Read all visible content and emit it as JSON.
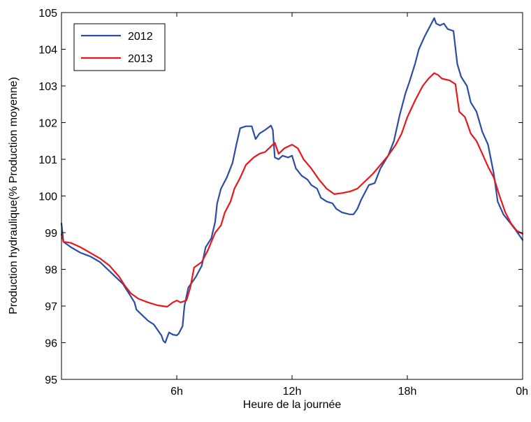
{
  "chart_data": {
    "type": "line",
    "xlabel": "Heure de la journée",
    "ylabel": "Production hydraulique(% Production moyenne)",
    "xlim": [
      0,
      24
    ],
    "ylim": [
      95,
      105
    ],
    "xticks": [
      {
        "value": 6,
        "label": "6h"
      },
      {
        "value": 12,
        "label": "12h"
      },
      {
        "value": 18,
        "label": "18h"
      },
      {
        "value": 24,
        "label": "0h"
      }
    ],
    "yticks": [
      {
        "value": 95,
        "label": "95"
      },
      {
        "value": 96,
        "label": "96"
      },
      {
        "value": 97,
        "label": "97"
      },
      {
        "value": 98,
        "label": "98"
      },
      {
        "value": 99,
        "label": "99"
      },
      {
        "value": 100,
        "label": "100"
      },
      {
        "value": 101,
        "label": "101"
      },
      {
        "value": 102,
        "label": "102"
      },
      {
        "value": 103,
        "label": "103"
      },
      {
        "value": 104,
        "label": "104"
      },
      {
        "value": 105,
        "label": "105"
      }
    ],
    "grid": false,
    "legend": {
      "position": "top-left",
      "boxed": true
    },
    "series": [
      {
        "name": "2012",
        "color": "#2c4ca6",
        "points": [
          [
            0.0,
            99.25
          ],
          [
            0.1,
            98.75
          ],
          [
            0.5,
            98.6
          ],
          [
            1.0,
            98.45
          ],
          [
            1.5,
            98.35
          ],
          [
            2.0,
            98.2
          ],
          [
            2.5,
            97.95
          ],
          [
            3.0,
            97.7
          ],
          [
            3.2,
            97.6
          ],
          [
            3.5,
            97.35
          ],
          [
            3.8,
            97.1
          ],
          [
            3.9,
            96.9
          ],
          [
            4.2,
            96.75
          ],
          [
            4.5,
            96.6
          ],
          [
            4.8,
            96.5
          ],
          [
            5.0,
            96.35
          ],
          [
            5.2,
            96.2
          ],
          [
            5.3,
            96.05
          ],
          [
            5.4,
            96.0
          ],
          [
            5.5,
            96.15
          ],
          [
            5.6,
            96.28
          ],
          [
            5.8,
            96.22
          ],
          [
            6.0,
            96.2
          ],
          [
            6.1,
            96.25
          ],
          [
            6.3,
            96.45
          ],
          [
            6.4,
            97.0
          ],
          [
            6.6,
            97.5
          ],
          [
            7.0,
            97.8
          ],
          [
            7.3,
            98.1
          ],
          [
            7.5,
            98.6
          ],
          [
            7.8,
            98.85
          ],
          [
            8.0,
            99.3
          ],
          [
            8.1,
            99.8
          ],
          [
            8.3,
            100.2
          ],
          [
            8.6,
            100.5
          ],
          [
            8.9,
            100.9
          ],
          [
            9.1,
            101.4
          ],
          [
            9.3,
            101.85
          ],
          [
            9.6,
            101.9
          ],
          [
            9.9,
            101.9
          ],
          [
            10.1,
            101.55
          ],
          [
            10.3,
            101.7
          ],
          [
            10.6,
            101.8
          ],
          [
            10.9,
            101.92
          ],
          [
            11.0,
            101.8
          ],
          [
            11.1,
            101.05
          ],
          [
            11.3,
            101.0
          ],
          [
            11.5,
            101.1
          ],
          [
            11.8,
            101.05
          ],
          [
            12.0,
            101.1
          ],
          [
            12.2,
            100.75
          ],
          [
            12.5,
            100.55
          ],
          [
            12.8,
            100.45
          ],
          [
            13.0,
            100.3
          ],
          [
            13.3,
            100.2
          ],
          [
            13.5,
            99.95
          ],
          [
            13.8,
            99.85
          ],
          [
            14.1,
            99.8
          ],
          [
            14.3,
            99.65
          ],
          [
            14.6,
            99.55
          ],
          [
            15.0,
            99.5
          ],
          [
            15.2,
            99.5
          ],
          [
            15.4,
            99.65
          ],
          [
            15.6,
            99.9
          ],
          [
            16.0,
            100.3
          ],
          [
            16.3,
            100.35
          ],
          [
            16.6,
            100.75
          ],
          [
            17.0,
            101.1
          ],
          [
            17.3,
            101.5
          ],
          [
            17.6,
            102.2
          ],
          [
            17.9,
            102.8
          ],
          [
            18.1,
            103.1
          ],
          [
            18.4,
            103.6
          ],
          [
            18.6,
            104.0
          ],
          [
            18.9,
            104.35
          ],
          [
            19.1,
            104.55
          ],
          [
            19.3,
            104.75
          ],
          [
            19.4,
            104.85
          ],
          [
            19.5,
            104.7
          ],
          [
            19.7,
            104.65
          ],
          [
            19.9,
            104.7
          ],
          [
            20.1,
            104.55
          ],
          [
            20.4,
            104.5
          ],
          [
            20.6,
            103.6
          ],
          [
            20.8,
            103.25
          ],
          [
            21.1,
            103.0
          ],
          [
            21.3,
            102.55
          ],
          [
            21.6,
            102.3
          ],
          [
            21.9,
            101.75
          ],
          [
            22.2,
            101.4
          ],
          [
            22.5,
            100.6
          ],
          [
            22.7,
            99.85
          ],
          [
            23.0,
            99.5
          ],
          [
            23.3,
            99.3
          ],
          [
            23.6,
            99.1
          ],
          [
            24.0,
            98.8
          ]
        ]
      },
      {
        "name": "2013",
        "color": "#e8171c",
        "points": [
          [
            0.0,
            98.95
          ],
          [
            0.1,
            98.75
          ],
          [
            0.5,
            98.72
          ],
          [
            1.0,
            98.6
          ],
          [
            1.5,
            98.45
          ],
          [
            2.0,
            98.3
          ],
          [
            2.5,
            98.1
          ],
          [
            3.0,
            97.8
          ],
          [
            3.3,
            97.55
          ],
          [
            3.6,
            97.35
          ],
          [
            4.0,
            97.2
          ],
          [
            4.5,
            97.1
          ],
          [
            5.0,
            97.02
          ],
          [
            5.5,
            96.98
          ],
          [
            5.8,
            97.1
          ],
          [
            6.0,
            97.15
          ],
          [
            6.2,
            97.1
          ],
          [
            6.5,
            97.15
          ],
          [
            6.7,
            97.5
          ],
          [
            6.9,
            98.05
          ],
          [
            7.3,
            98.2
          ],
          [
            7.6,
            98.5
          ],
          [
            8.0,
            99.0
          ],
          [
            8.3,
            99.2
          ],
          [
            8.5,
            99.55
          ],
          [
            8.8,
            99.85
          ],
          [
            9.0,
            100.2
          ],
          [
            9.3,
            100.5
          ],
          [
            9.6,
            100.85
          ],
          [
            10.0,
            101.05
          ],
          [
            10.3,
            101.15
          ],
          [
            10.6,
            101.2
          ],
          [
            10.9,
            101.35
          ],
          [
            11.1,
            101.45
          ],
          [
            11.3,
            101.15
          ],
          [
            11.6,
            101.3
          ],
          [
            12.0,
            101.4
          ],
          [
            12.3,
            101.3
          ],
          [
            12.6,
            101.0
          ],
          [
            13.0,
            100.75
          ],
          [
            13.4,
            100.45
          ],
          [
            13.8,
            100.2
          ],
          [
            14.2,
            100.05
          ],
          [
            14.6,
            100.08
          ],
          [
            15.0,
            100.12
          ],
          [
            15.4,
            100.2
          ],
          [
            15.8,
            100.4
          ],
          [
            16.2,
            100.6
          ],
          [
            16.6,
            100.85
          ],
          [
            17.0,
            101.1
          ],
          [
            17.4,
            101.4
          ],
          [
            17.7,
            101.7
          ],
          [
            18.0,
            102.15
          ],
          [
            18.4,
            102.6
          ],
          [
            18.8,
            103.0
          ],
          [
            19.1,
            103.2
          ],
          [
            19.4,
            103.35
          ],
          [
            19.6,
            103.3
          ],
          [
            19.8,
            103.2
          ],
          [
            20.2,
            103.15
          ],
          [
            20.5,
            103.05
          ],
          [
            20.7,
            102.3
          ],
          [
            21.0,
            102.15
          ],
          [
            21.3,
            101.7
          ],
          [
            21.6,
            101.5
          ],
          [
            21.9,
            101.15
          ],
          [
            22.2,
            100.8
          ],
          [
            22.5,
            100.5
          ],
          [
            22.8,
            100.0
          ],
          [
            23.1,
            99.55
          ],
          [
            23.4,
            99.25
          ],
          [
            23.7,
            99.05
          ],
          [
            24.0,
            98.97
          ]
        ]
      }
    ]
  }
}
